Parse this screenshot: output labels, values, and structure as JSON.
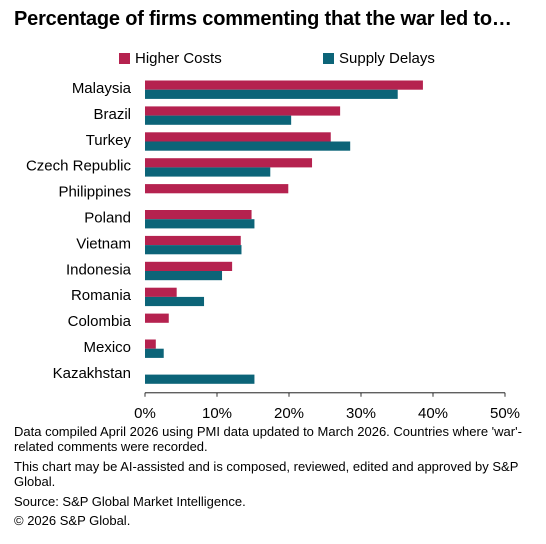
{
  "title": "Percentage of firms commenting that the war led to…",
  "colors": {
    "higher_costs": "#B5224F",
    "supply_delays": "#0C6478"
  },
  "chart_data": {
    "type": "bar",
    "orientation": "horizontal",
    "title": "Percentage of firms commenting that the war led to…",
    "xlabel": "",
    "ylabel": "",
    "categories": [
      "Malaysia",
      "Brazil",
      "Turkey",
      "Czech Republic",
      "Philippines",
      "Poland",
      "Vietnam",
      "Indonesia",
      "Romania",
      "Colombia",
      "Mexico",
      "Kazakhstan"
    ],
    "series": [
      {
        "name": "Higher Costs",
        "values": [
          38.6,
          27.1,
          25.8,
          23.2,
          19.9,
          14.8,
          13.3,
          12.1,
          4.4,
          3.3,
          1.5,
          0
        ]
      },
      {
        "name": "Supply Delays",
        "values": [
          35.1,
          20.3,
          28.5,
          17.4,
          0,
          15.2,
          13.4,
          10.7,
          8.2,
          0,
          2.6,
          15.2
        ]
      }
    ],
    "xlim": [
      0,
      50
    ],
    "xticks": [
      0,
      10,
      20,
      30,
      40,
      50
    ],
    "tick_suffix": "%",
    "legend_position": "top",
    "grid": false
  },
  "footer": {
    "note1": "Data compiled April 2026 using PMI data updated to March 2026. Countries where 'war'-related comments were recorded.",
    "note2": "This chart may be AI-assisted and is composed, reviewed, edited and approved by S&P Global.",
    "source": "Source: S&P Global Market Intelligence.",
    "copyright": "© 2026 S&P Global."
  }
}
